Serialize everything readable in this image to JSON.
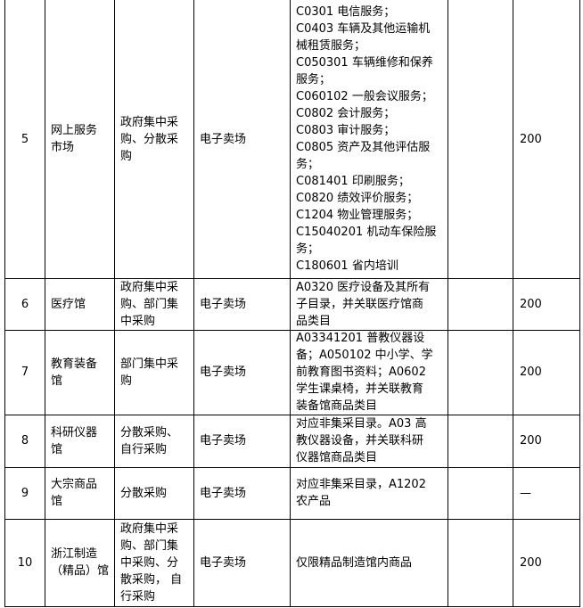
{
  "table": {
    "rows": [
      {
        "no": 5,
        "name": [
          "网上服务",
          "市场"
        ],
        "mode": [
          "政府集中采",
          "购、分散采",
          "购"
        ],
        "type": "电子卖场",
        "category": [
          "C0301 电信服务；",
          "C0403 车辆及其他运输机",
          "械租赁服务；",
          "C050301 车辆维修和保养",
          "服务；",
          "C060102  一般会议服务；",
          "C0802 会计服务；",
          "C0803 审计服务；",
          "C0805 资产及其他评估服",
          "务；",
          "C081401 印刷服务；",
          "C0820 绩效评价服务；",
          "C1204 物业管理服务；",
          "C15040201 机动车保险服",
          "务；",
          "C180601  省内培训"
        ],
        "amount": 200
      },
      {
        "no": 6,
        "name": [
          "医疗馆"
        ],
        "mode": [
          "政府集中采",
          "购、部门集",
          "中采购"
        ],
        "type": "电子卖场",
        "category": [
          "A0320 医疗设备及其所有",
          "子目录，并关联医疗馆商",
          "品类目"
        ],
        "amount": 200
      },
      {
        "no": 7,
        "name": [
          "教育装备",
          "馆"
        ],
        "mode": [
          "部门集中采",
          "购"
        ],
        "type": "电子卖场",
        "category": [
          "A03341201 普教仪器设",
          "备；A050102 中小学、学",
          "前教育图书资料；A0602",
          "学生课桌椅，并关联教育",
          "装备馆商品类目"
        ],
        "amount": 200
      },
      {
        "no": 8,
        "name": [
          "科研仪器",
          "馆"
        ],
        "mode": [
          "分散采购、",
          "自行采购"
        ],
        "type": "电子卖场",
        "category": [
          "对应非集采目录。A03 高",
          "教仪器设备，并关联科研",
          "仪器馆商品类目"
        ],
        "amount": 200
      },
      {
        "no": 9,
        "name": [
          "大宗商品",
          "馆"
        ],
        "mode": [
          "分散采购"
        ],
        "type": "电子卖场",
        "category": [
          "对应非集采目录，A1202",
          "农产品"
        ],
        "amount": "—"
      },
      {
        "no": 10,
        "name": [
          "浙江制造",
          "（精品）馆"
        ],
        "mode": [
          "政府集中采",
          "购、部门集",
          "中采购、分",
          "散采购， 自",
          "行采购"
        ],
        "type": "电子卖场",
        "category": [
          "仅限精品制造馆内商品"
        ],
        "amount": 200
      }
    ]
  }
}
